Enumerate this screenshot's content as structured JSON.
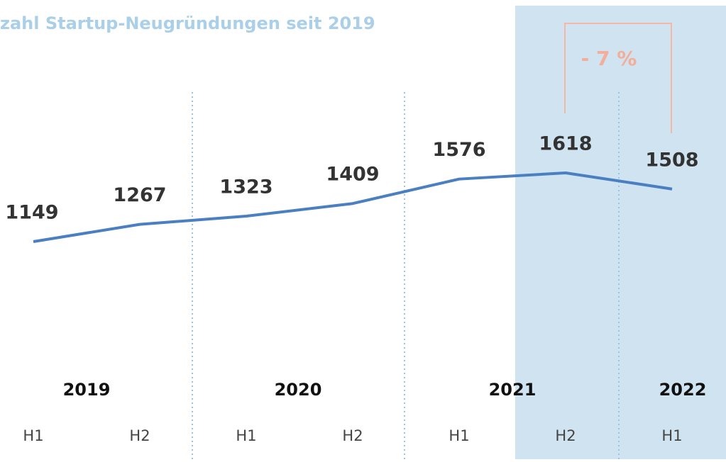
{
  "chart_data": {
    "type": "line",
    "title": "zahl Startup-Neugründungen seit 2019",
    "categories": [
      "H1",
      "H2",
      "H1",
      "H2",
      "H1",
      "H2",
      "H1"
    ],
    "years": [
      "2019",
      "2020",
      "2021",
      "2022"
    ],
    "series": [
      {
        "name": "Startup-Neugründungen",
        "color": "#4a7fc1",
        "values": [
          1149,
          1267,
          1323,
          1409,
          1576,
          1618,
          1508
        ]
      }
    ],
    "annotation": "- 7 %"
  }
}
